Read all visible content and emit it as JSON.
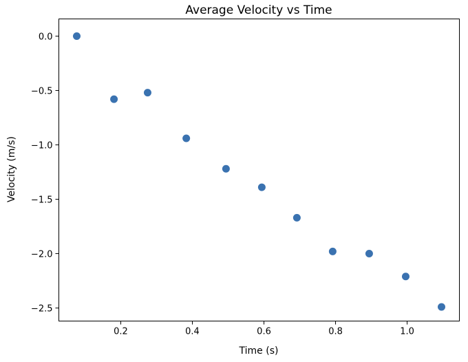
{
  "chart_data": {
    "type": "scatter",
    "title": "Average Velocity vs Time",
    "xlabel": "Time (s)",
    "ylabel": "Velocity (m/s)",
    "xlim": [
      0.027,
      1.146
    ],
    "ylim": [
      -2.62,
      0.158
    ],
    "xticks": [
      0.2,
      0.4,
      0.6,
      0.8,
      1.0
    ],
    "xtick_labels": [
      "0.2",
      "0.4",
      "0.6",
      "0.8",
      "1.0"
    ],
    "yticks": [
      0.0,
      -0.5,
      -1.0,
      -1.5,
      -2.0,
      -2.5
    ],
    "ytick_labels": [
      "0.0",
      "−0.5",
      "−1.0",
      "−1.5",
      "−2.0",
      "−2.5"
    ],
    "grid": false,
    "color": "#3a72b0",
    "x": [
      0.077,
      0.181,
      0.275,
      0.383,
      0.494,
      0.594,
      0.692,
      0.792,
      0.894,
      0.996,
      1.096
    ],
    "y": [
      0.0,
      -0.58,
      -0.52,
      -0.94,
      -1.22,
      -1.39,
      -1.67,
      -1.98,
      -2.0,
      -2.21,
      -2.49
    ]
  }
}
